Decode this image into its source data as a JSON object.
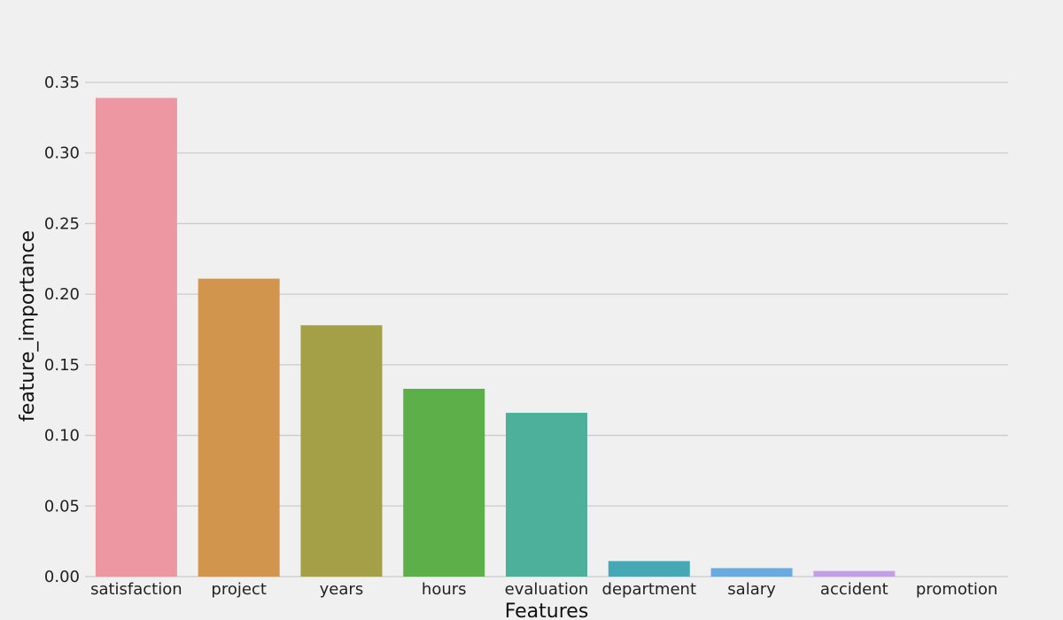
{
  "chart_data": {
    "type": "bar",
    "categories": [
      "satisfaction",
      "project",
      "years",
      "hours",
      "evaluation",
      "department",
      "salary",
      "accident",
      "promotion"
    ],
    "values": [
      0.339,
      0.211,
      0.178,
      0.133,
      0.116,
      0.011,
      0.006,
      0.004,
      0.0
    ],
    "colors": [
      "#ec97a2",
      "#d1954e",
      "#a3a047",
      "#5daf4a",
      "#4cb09a",
      "#45a8b4",
      "#6aabdf",
      "#c1a0e6",
      "#ec97c6"
    ],
    "xlabel": "Features",
    "ylabel": "feature_importance",
    "ylim": [
      0,
      0.35
    ],
    "yticks": [
      "0.00",
      "0.05",
      "0.10",
      "0.15",
      "0.20",
      "0.25",
      "0.30",
      "0.35"
    ],
    "grid": "horizontal",
    "legend": "none"
  }
}
